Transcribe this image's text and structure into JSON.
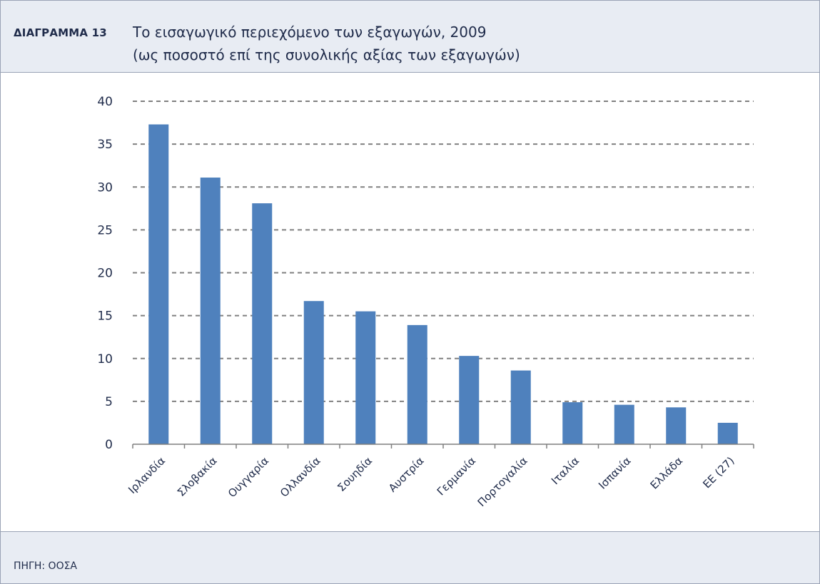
{
  "header": {
    "label": "ΔΙΑΓΡΑΜΜΑ 13",
    "title_line1": "Το εισαγωγικό περιεχόμενο των εξαγωγών, 2009",
    "title_line2": "(ως ποσοστό επί της συνολικής αξίας των εξαγωγών)"
  },
  "footer": {
    "source": "ΠΗΓΗ: ΟΟΣΑ"
  },
  "colors": {
    "bar": "#4f81bd",
    "grid": "#808080",
    "text": "#1f2b4a"
  },
  "chart_data": {
    "type": "bar",
    "categories": [
      "Ιρλανδία",
      "Σλοβακία",
      "Ουγγαρία",
      "Ολλανδία",
      "Σουηδία",
      "Αυστρία",
      "Γερμανία",
      "Πορτογαλία",
      "Ιταλία",
      "Ισπανία",
      "Ελλάδα",
      "ΕΕ (27)"
    ],
    "values": [
      37.3,
      31.1,
      28.1,
      16.7,
      15.5,
      13.9,
      10.3,
      8.6,
      4.9,
      4.6,
      4.3,
      2.5
    ],
    "ylim": [
      0,
      40
    ],
    "yticks": [
      "0",
      "5",
      "10",
      "15",
      "20",
      "25",
      "30",
      "35",
      "40"
    ],
    "grid": true,
    "grid_style": "dashed",
    "legend": "none"
  }
}
